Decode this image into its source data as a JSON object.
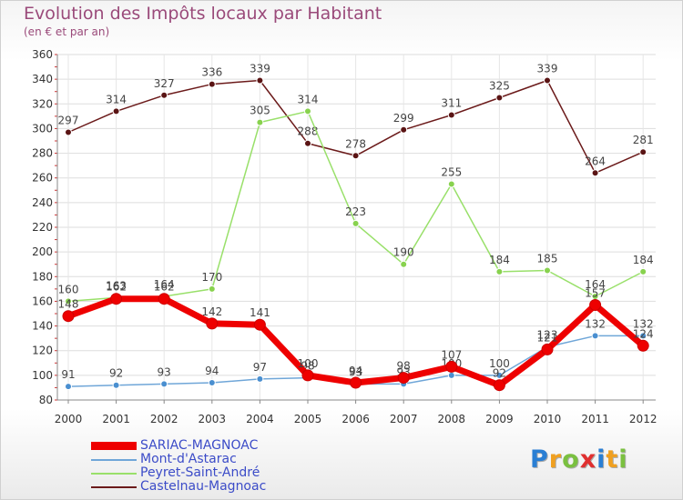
{
  "chart_data": {
    "type": "line",
    "title": "Evolution des Impôts locaux par Habitant",
    "subtitle": "(en € et par an)",
    "xlabel": "",
    "ylabel": "",
    "ylim": [
      80,
      360
    ],
    "yticks": [
      80,
      100,
      120,
      140,
      160,
      180,
      200,
      220,
      240,
      260,
      280,
      300,
      320,
      340,
      360
    ],
    "categories": [
      "2000",
      "2001",
      "2002",
      "2003",
      "2004",
      "2005",
      "2006",
      "2007",
      "2008",
      "2009",
      "2010",
      "2011",
      "2012"
    ],
    "grid": true,
    "legend_position": "bottom-left",
    "series": [
      {
        "name": "Castelnau-Magnoac",
        "color": "#6b1a1a",
        "point_color": "#5a1414",
        "values": [
          297,
          314,
          327,
          336,
          339,
          288,
          278,
          299,
          311,
          325,
          339,
          264,
          281
        ]
      },
      {
        "name": "Peyret-Saint-André",
        "color": "#99e06a",
        "point_color": "#88d24e",
        "values": [
          160,
          163,
          164,
          170,
          305,
          314,
          223,
          190,
          255,
          184,
          185,
          164,
          184
        ]
      },
      {
        "name": "Mont-d'Astarac",
        "color": "#6fa6d8",
        "point_color": "#4a8fd0",
        "values": [
          91,
          92,
          93,
          94,
          97,
          98,
          93,
          93,
          100,
          100,
          123,
          132,
          132
        ]
      },
      {
        "name": "SARIAC-MAGNOAC",
        "color": "#ee0000",
        "point_color": "#ee0000",
        "values": [
          148,
          162,
          162,
          142,
          141,
          100,
          94,
          98,
          107,
          92,
          121,
          157,
          124
        ]
      }
    ]
  },
  "legend": {
    "items": [
      {
        "label": "SARIAC-MAGNOAC",
        "color": "#ee0000"
      },
      {
        "label": "Mont-d'Astarac",
        "color": "#6fa6d8"
      },
      {
        "label": "Peyret-Saint-André",
        "color": "#99e06a"
      },
      {
        "label": "Castelnau-Magnoac",
        "color": "#6b1a1a"
      }
    ]
  },
  "brand": {
    "letters": [
      "P",
      "r",
      "o",
      "x",
      "i",
      "t",
      "i"
    ],
    "colors": [
      "#2a7fd4",
      "#f0a020",
      "#7ac040",
      "#e03030",
      "#2a7fd4",
      "#f0a020",
      "#7ac040"
    ]
  }
}
